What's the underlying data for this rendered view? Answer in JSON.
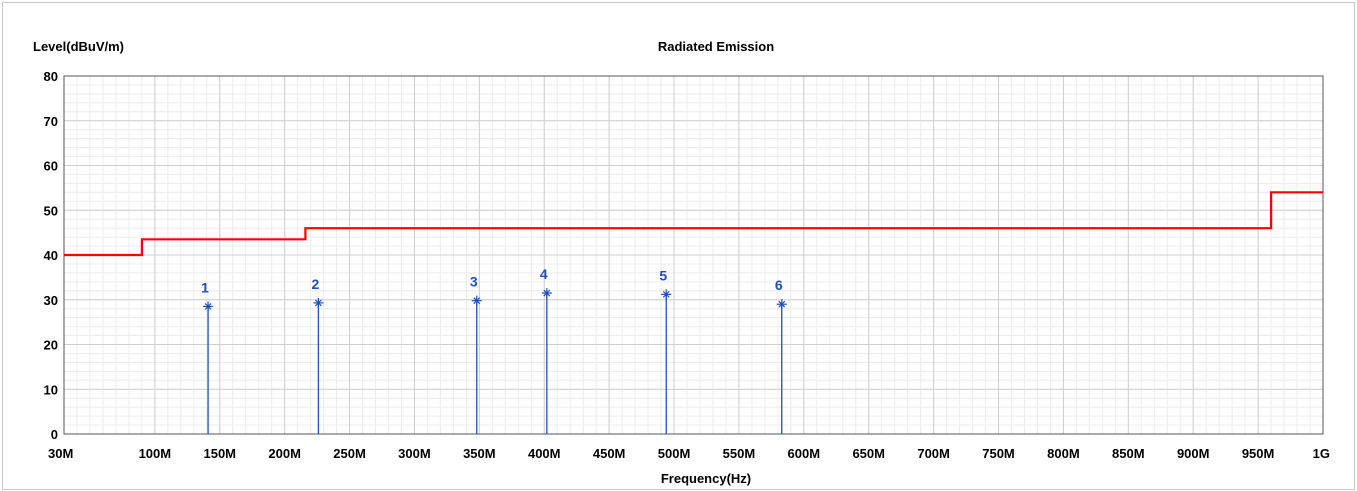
{
  "chart_data": {
    "type": "line",
    "title": "Radiated Emission",
    "ylabel": "Level(dBuV/m)",
    "xlabel": "Frequency(Hz)",
    "xlim": [
      30,
      1000
    ],
    "ylim": [
      0,
      80
    ],
    "grid": true,
    "y_ticks": [
      0,
      10,
      20,
      30,
      40,
      50,
      60,
      70,
      80
    ],
    "x_ticks": [
      {
        "value": 30,
        "label": "30M"
      },
      {
        "value": 100,
        "label": "100M"
      },
      {
        "value": 150,
        "label": "150M"
      },
      {
        "value": 200,
        "label": "200M"
      },
      {
        "value": 250,
        "label": "250M"
      },
      {
        "value": 300,
        "label": "300M"
      },
      {
        "value": 350,
        "label": "350M"
      },
      {
        "value": 400,
        "label": "400M"
      },
      {
        "value": 450,
        "label": "450M"
      },
      {
        "value": 500,
        "label": "500M"
      },
      {
        "value": 550,
        "label": "550M"
      },
      {
        "value": 600,
        "label": "600M"
      },
      {
        "value": 650,
        "label": "650M"
      },
      {
        "value": 700,
        "label": "700M"
      },
      {
        "value": 750,
        "label": "750M"
      },
      {
        "value": 800,
        "label": "800M"
      },
      {
        "value": 850,
        "label": "850M"
      },
      {
        "value": 900,
        "label": "900M"
      },
      {
        "value": 950,
        "label": "950M"
      },
      {
        "value": 1000,
        "label": "1G"
      }
    ],
    "limit_line": {
      "color": "#ff0000",
      "points": [
        [
          30,
          40
        ],
        [
          90,
          40
        ],
        [
          90,
          43.5
        ],
        [
          216,
          43.5
        ],
        [
          216,
          46
        ],
        [
          960,
          46
        ],
        [
          960,
          54
        ],
        [
          1000,
          54
        ]
      ]
    },
    "markers": {
      "color": "#1f4fbf",
      "points": [
        {
          "label": "1",
          "freq": 141,
          "level": 28.5
        },
        {
          "label": "2",
          "freq": 226,
          "level": 29.3
        },
        {
          "label": "3",
          "freq": 348,
          "level": 29.8
        },
        {
          "label": "4",
          "freq": 402,
          "level": 31.5
        },
        {
          "label": "5",
          "freq": 494,
          "level": 31.2
        },
        {
          "label": "6",
          "freq": 583,
          "level": 29.0
        }
      ]
    }
  }
}
